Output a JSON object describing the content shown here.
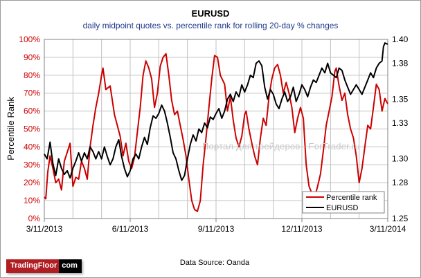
{
  "header": {
    "title": "EURUSD",
    "subtitle": "daily midpoint quotes vs. percentile rank for rolling 20-day % changes"
  },
  "footer": {
    "source": "Data Source: Oanda",
    "logo_left": "TradingFloor",
    "logo_right": "com"
  },
  "watermark": "Портал для трейдеров - ForTrader.ru",
  "colors": {
    "percentile": "#cc0000",
    "eurusd": "#000000",
    "left_axis": "#cc0000",
    "grid": "#c0c0c0"
  },
  "chart_data": {
    "type": "line",
    "title": "EURUSD",
    "subtitle": "daily midpoint quotes vs. percentile rank for rolling 20-day % changes",
    "ylabel": "Percentile Rank",
    "y_left": {
      "min": 0,
      "max": 100,
      "ticks": [
        "0%",
        "10%",
        "20%",
        "30%",
        "40%",
        "50%",
        "60%",
        "70%",
        "80%",
        "90%",
        "100%"
      ]
    },
    "y_right": {
      "min": 1.25,
      "max": 1.4,
      "ticks": [
        "1.25",
        "1.28",
        "1.30",
        "1.33",
        "1.35",
        "1.38",
        "1.40"
      ]
    },
    "x_range": [
      0,
      12
    ],
    "x_ticks": [
      {
        "x": 0,
        "label": "3/11/2013"
      },
      {
        "x": 3,
        "label": "6/11/2013"
      },
      {
        "x": 6,
        "label": "9/11/2013"
      },
      {
        "x": 9,
        "label": "12/11/2013"
      },
      {
        "x": 12,
        "label": "3/11/2014"
      }
    ],
    "grid": true,
    "legend_position": "bottom-right",
    "series": [
      {
        "name": "Percentile rank",
        "axis": "left",
        "points": [
          [
            0,
            12
          ],
          [
            0.05,
            11
          ],
          [
            0.12,
            26
          ],
          [
            0.2,
            35
          ],
          [
            0.3,
            28
          ],
          [
            0.4,
            20
          ],
          [
            0.5,
            22
          ],
          [
            0.6,
            16
          ],
          [
            0.7,
            32
          ],
          [
            0.8,
            37
          ],
          [
            0.9,
            42
          ],
          [
            1.0,
            18
          ],
          [
            1.1,
            23
          ],
          [
            1.2,
            22
          ],
          [
            1.3,
            32
          ],
          [
            1.4,
            28
          ],
          [
            1.5,
            22
          ],
          [
            1.6,
            40
          ],
          [
            1.7,
            52
          ],
          [
            1.8,
            62
          ],
          [
            1.9,
            70
          ],
          [
            2.0,
            80
          ],
          [
            2.05,
            84
          ],
          [
            2.15,
            72
          ],
          [
            2.3,
            74
          ],
          [
            2.45,
            58
          ],
          [
            2.55,
            52
          ],
          [
            2.65,
            46
          ],
          [
            2.75,
            35
          ],
          [
            2.85,
            42
          ],
          [
            2.95,
            32
          ],
          [
            3.05,
            28
          ],
          [
            3.15,
            34
          ],
          [
            3.25,
            48
          ],
          [
            3.35,
            62
          ],
          [
            3.45,
            80
          ],
          [
            3.55,
            88
          ],
          [
            3.65,
            84
          ],
          [
            3.75,
            78
          ],
          [
            3.85,
            62
          ],
          [
            3.95,
            70
          ],
          [
            4.05,
            85
          ],
          [
            4.15,
            90
          ],
          [
            4.25,
            92
          ],
          [
            4.35,
            80
          ],
          [
            4.45,
            66
          ],
          [
            4.55,
            58
          ],
          [
            4.65,
            60
          ],
          [
            4.75,
            52
          ],
          [
            4.85,
            44
          ],
          [
            4.95,
            35
          ],
          [
            5.05,
            22
          ],
          [
            5.15,
            10
          ],
          [
            5.25,
            5
          ],
          [
            5.35,
            4
          ],
          [
            5.45,
            10
          ],
          [
            5.55,
            30
          ],
          [
            5.65,
            45
          ],
          [
            5.75,
            62
          ],
          [
            5.85,
            78
          ],
          [
            5.95,
            91
          ],
          [
            6.05,
            90
          ],
          [
            6.15,
            80
          ],
          [
            6.3,
            75
          ],
          [
            6.4,
            60
          ],
          [
            6.5,
            68
          ],
          [
            6.6,
            55
          ],
          [
            6.7,
            45
          ],
          [
            6.8,
            40
          ],
          [
            6.9,
            46
          ],
          [
            7.0,
            58
          ],
          [
            7.05,
            60
          ],
          [
            7.15,
            50
          ],
          [
            7.25,
            42
          ],
          [
            7.35,
            35
          ],
          [
            7.45,
            30
          ],
          [
            7.55,
            45
          ],
          [
            7.65,
            56
          ],
          [
            7.75,
            52
          ],
          [
            7.85,
            68
          ],
          [
            7.95,
            78
          ],
          [
            8.05,
            84
          ],
          [
            8.15,
            86
          ],
          [
            8.25,
            80
          ],
          [
            8.35,
            70
          ],
          [
            8.45,
            76
          ],
          [
            8.55,
            70
          ],
          [
            8.65,
            62
          ],
          [
            8.75,
            48
          ],
          [
            8.85,
            56
          ],
          [
            8.95,
            62
          ],
          [
            9.05,
            56
          ],
          [
            9.15,
            30
          ],
          [
            9.25,
            18
          ],
          [
            9.35,
            14
          ],
          [
            9.45,
            12
          ],
          [
            9.55,
            18
          ],
          [
            9.65,
            25
          ],
          [
            9.75,
            38
          ],
          [
            9.85,
            52
          ],
          [
            9.95,
            60
          ],
          [
            10.05,
            68
          ],
          [
            10.15,
            82
          ],
          [
            10.2,
            84
          ],
          [
            10.3,
            74
          ],
          [
            10.4,
            66
          ],
          [
            10.5,
            70
          ],
          [
            10.6,
            58
          ],
          [
            10.7,
            50
          ],
          [
            10.8,
            45
          ],
          [
            10.9,
            35
          ],
          [
            11.0,
            20
          ],
          [
            11.1,
            28
          ],
          [
            11.2,
            40
          ],
          [
            11.3,
            52
          ],
          [
            11.4,
            50
          ],
          [
            11.5,
            62
          ],
          [
            11.6,
            75
          ],
          [
            11.7,
            72
          ],
          [
            11.8,
            60
          ],
          [
            11.9,
            67
          ],
          [
            12.0,
            64
          ]
        ]
      },
      {
        "name": "EURUSD",
        "axis": "right",
        "points": [
          [
            0,
            1.304
          ],
          [
            0.1,
            1.3
          ],
          [
            0.2,
            1.314
          ],
          [
            0.3,
            1.296
          ],
          [
            0.4,
            1.286
          ],
          [
            0.5,
            1.3
          ],
          [
            0.6,
            1.292
          ],
          [
            0.7,
            1.287
          ],
          [
            0.8,
            1.29
          ],
          [
            0.9,
            1.284
          ],
          [
            1.0,
            1.292
          ],
          [
            1.1,
            1.298
          ],
          [
            1.2,
            1.305
          ],
          [
            1.3,
            1.298
          ],
          [
            1.4,
            1.305
          ],
          [
            1.5,
            1.3
          ],
          [
            1.6,
            1.31
          ],
          [
            1.7,
            1.306
          ],
          [
            1.8,
            1.3
          ],
          [
            1.9,
            1.306
          ],
          [
            2.0,
            1.3
          ],
          [
            2.1,
            1.31
          ],
          [
            2.2,
            1.302
          ],
          [
            2.3,
            1.295
          ],
          [
            2.4,
            1.3
          ],
          [
            2.5,
            1.31
          ],
          [
            2.6,
            1.316
          ],
          [
            2.7,
            1.302
          ],
          [
            2.8,
            1.292
          ],
          [
            2.9,
            1.285
          ],
          [
            3.0,
            1.29
          ],
          [
            3.1,
            1.3
          ],
          [
            3.2,
            1.304
          ],
          [
            3.3,
            1.3
          ],
          [
            3.4,
            1.31
          ],
          [
            3.5,
            1.318
          ],
          [
            3.6,
            1.312
          ],
          [
            3.7,
            1.326
          ],
          [
            3.8,
            1.336
          ],
          [
            3.9,
            1.334
          ],
          [
            4.0,
            1.338
          ],
          [
            4.1,
            1.345
          ],
          [
            4.2,
            1.34
          ],
          [
            4.3,
            1.33
          ],
          [
            4.4,
            1.318
          ],
          [
            4.5,
            1.305
          ],
          [
            4.6,
            1.3
          ],
          [
            4.7,
            1.29
          ],
          [
            4.8,
            1.282
          ],
          [
            4.9,
            1.286
          ],
          [
            5.0,
            1.3
          ],
          [
            5.1,
            1.312
          ],
          [
            5.2,
            1.32
          ],
          [
            5.3,
            1.315
          ],
          [
            5.4,
            1.325
          ],
          [
            5.5,
            1.322
          ],
          [
            5.6,
            1.33
          ],
          [
            5.7,
            1.326
          ],
          [
            5.8,
            1.335
          ],
          [
            5.9,
            1.333
          ],
          [
            6.0,
            1.338
          ],
          [
            6.1,
            1.342
          ],
          [
            6.2,
            1.334
          ],
          [
            6.3,
            1.34
          ],
          [
            6.4,
            1.35
          ],
          [
            6.5,
            1.354
          ],
          [
            6.6,
            1.348
          ],
          [
            6.7,
            1.356
          ],
          [
            6.8,
            1.352
          ],
          [
            6.9,
            1.362
          ],
          [
            7.0,
            1.356
          ],
          [
            7.1,
            1.362
          ],
          [
            7.2,
            1.37
          ],
          [
            7.3,
            1.368
          ],
          [
            7.4,
            1.38
          ],
          [
            7.5,
            1.382
          ],
          [
            7.6,
            1.378
          ],
          [
            7.7,
            1.36
          ],
          [
            7.8,
            1.35
          ],
          [
            7.9,
            1.358
          ],
          [
            8.0,
            1.354
          ],
          [
            8.1,
            1.346
          ],
          [
            8.2,
            1.342
          ],
          [
            8.3,
            1.35
          ],
          [
            8.4,
            1.356
          ],
          [
            8.5,
            1.348
          ],
          [
            8.6,
            1.352
          ],
          [
            8.7,
            1.36
          ],
          [
            8.8,
            1.348
          ],
          [
            8.9,
            1.354
          ],
          [
            9.0,
            1.362
          ],
          [
            9.1,
            1.358
          ],
          [
            9.2,
            1.352
          ],
          [
            9.3,
            1.36
          ],
          [
            9.4,
            1.366
          ],
          [
            9.5,
            1.364
          ],
          [
            9.6,
            1.37
          ],
          [
            9.7,
            1.376
          ],
          [
            9.8,
            1.372
          ],
          [
            9.9,
            1.38
          ],
          [
            10.0,
            1.372
          ],
          [
            10.1,
            1.37
          ],
          [
            10.2,
            1.368
          ],
          [
            10.3,
            1.376
          ],
          [
            10.4,
            1.374
          ],
          [
            10.5,
            1.366
          ],
          [
            10.6,
            1.36
          ],
          [
            10.7,
            1.354
          ],
          [
            10.8,
            1.358
          ],
          [
            10.9,
            1.362
          ],
          [
            11.0,
            1.358
          ],
          [
            11.1,
            1.354
          ],
          [
            11.2,
            1.36
          ],
          [
            11.3,
            1.366
          ],
          [
            11.4,
            1.372
          ],
          [
            11.5,
            1.368
          ],
          [
            11.6,
            1.376
          ],
          [
            11.7,
            1.38
          ],
          [
            11.8,
            1.382
          ],
          [
            11.85,
            1.394
          ],
          [
            11.9,
            1.397
          ],
          [
            12.0,
            1.396
          ]
        ]
      }
    ]
  }
}
